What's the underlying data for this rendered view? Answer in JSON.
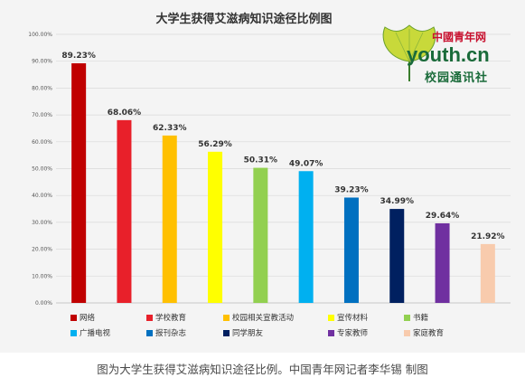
{
  "chart_data": {
    "type": "bar",
    "title": "大学生获得艾滋病知识途径比例图",
    "categories": [
      "网络",
      "学校教育",
      "校园相关宣教活动",
      "宣传材料",
      "书籍",
      "广播电视",
      "报刊杂志",
      "同学朋友",
      "专家教师",
      "家庭教育"
    ],
    "values": [
      89.23,
      68.06,
      62.33,
      56.29,
      50.31,
      49.07,
      39.23,
      34.99,
      29.64,
      21.92
    ],
    "value_labels": [
      "89.23%",
      "68.06%",
      "62.33%",
      "56.29%",
      "50.31%",
      "49.07%",
      "39.23%",
      "34.99%",
      "29.64%",
      "21.92%"
    ],
    "colors": [
      "#c00000",
      "#e8202a",
      "#ffc000",
      "#ffff00",
      "#92d050",
      "#00b0f0",
      "#0070c0",
      "#002060",
      "#7030a0",
      "#f8cbad"
    ],
    "y_ticks": [
      "0.00%",
      "10.00%",
      "20.00%",
      "30.00%",
      "40.00%",
      "50.00%",
      "60.00%",
      "70.00%",
      "80.00%",
      "90.00%",
      "100.00%"
    ],
    "ylim": [
      0,
      100
    ],
    "grid": true,
    "legend_position": "bottom"
  },
  "logo": {
    "line1": "中國青年网",
    "line2": "youth.cn",
    "line3": "校园通讯社"
  },
  "caption": "图为大学生获得艾滋病知识途径比例。中国青年网记者李华锡 制图"
}
